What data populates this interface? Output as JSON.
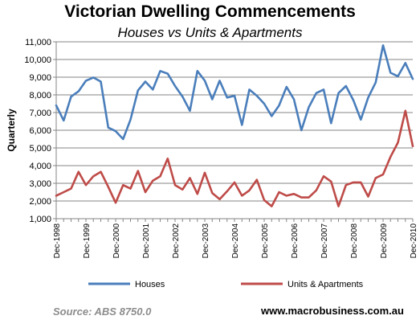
{
  "chart_data": {
    "type": "line",
    "title": "Victorian Dwelling Commencements",
    "subtitle": "Houses vs Units & Apartments",
    "ylabel": "Quarterly",
    "xlabel": "",
    "ylim": [
      1000,
      11000
    ],
    "yticks": [
      1000,
      2000,
      3000,
      4000,
      5000,
      6000,
      7000,
      8000,
      9000,
      10000,
      11000
    ],
    "ytick_labels": [
      "1,000",
      "2,000",
      "3,000",
      "4,000",
      "5,000",
      "6,000",
      "7,000",
      "8,000",
      "9,000",
      "10,000",
      "11,000"
    ],
    "xtick_labels": [
      "Dec-1998",
      "Dec-1999",
      "Dec-2000",
      "Dec-2001",
      "Dec-2002",
      "Dec-2003",
      "Dec-2004",
      "Dec-2005",
      "Dec-2006",
      "Dec-2007",
      "Dec-2008",
      "Dec-2009",
      "Dec-2010"
    ],
    "grid": true,
    "legend_position": "bottom",
    "series": [
      {
        "name": "Houses",
        "color": "#4a7ebb",
        "values": [
          7400,
          6550,
          7900,
          8200,
          8800,
          8980,
          8750,
          6150,
          5950,
          5500,
          6600,
          8250,
          8750,
          8300,
          9350,
          9200,
          8500,
          7900,
          7100,
          9350,
          8800,
          7750,
          8800,
          7850,
          7950,
          6300,
          8300,
          7950,
          7500,
          6800,
          7400,
          8450,
          7750,
          6000,
          7300,
          8100,
          8300,
          6400,
          8100,
          8500,
          7700,
          6600,
          7850,
          8700,
          10800,
          9250,
          9050,
          9800,
          8900
        ]
      },
      {
        "name": "Units & Apartments",
        "color": "#be4b48",
        "values": [
          2300,
          2500,
          2700,
          3650,
          2900,
          3400,
          3650,
          2800,
          1900,
          2900,
          2700,
          3700,
          2500,
          3150,
          3400,
          4400,
          2900,
          2650,
          3300,
          2400,
          3600,
          2450,
          2100,
          2550,
          3050,
          2300,
          2600,
          3200,
          2050,
          1700,
          2500,
          2300,
          2400,
          2200,
          2200,
          2600,
          3400,
          3100,
          1700,
          2900,
          3050,
          3050,
          2250,
          3300,
          3500,
          4500,
          5300,
          7100,
          5100
        ]
      }
    ]
  },
  "footer": {
    "source": "Source: ABS 8750.0",
    "website": "www.macrobusiness.com.au"
  }
}
